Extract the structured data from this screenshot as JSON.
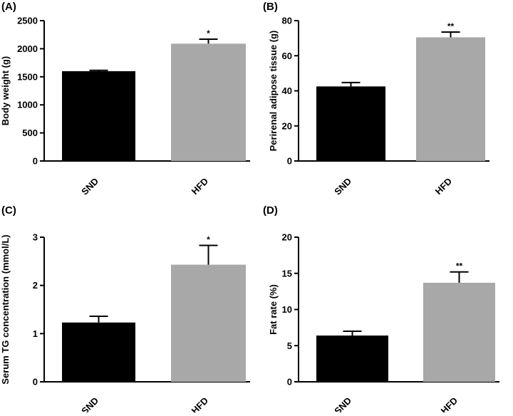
{
  "chart_data": [
    {
      "type": "bar",
      "panel_label": "(A)",
      "categories": [
        "SND",
        "HFD"
      ],
      "values": [
        1600,
        2090
      ],
      "errors": [
        15,
        80
      ],
      "significance": [
        "",
        "*"
      ],
      "ylabel": "Body weight (g)",
      "ylim": [
        0,
        2500
      ],
      "yticks": [
        0,
        500,
        1000,
        1500,
        2000,
        2500
      ],
      "colors": [
        "#000000",
        "#a8a8a8"
      ]
    },
    {
      "type": "bar",
      "panel_label": "(B)",
      "categories": [
        "SND",
        "HFD"
      ],
      "values": [
        42.5,
        70.5
      ],
      "errors": [
        2.2,
        3.0
      ],
      "significance": [
        "",
        "**"
      ],
      "ylabel": "Perirenal adipose tissue (g)",
      "ylim": [
        0,
        80
      ],
      "yticks": [
        0,
        20,
        40,
        60,
        80
      ],
      "colors": [
        "#000000",
        "#a8a8a8"
      ]
    },
    {
      "type": "bar",
      "panel_label": "(C)",
      "categories": [
        "SND",
        "HFD"
      ],
      "values": [
        1.23,
        2.43
      ],
      "errors": [
        0.13,
        0.4
      ],
      "significance": [
        "",
        "*"
      ],
      "ylabel": "Serum TG concentration (mmol/L)",
      "ylim": [
        0,
        3
      ],
      "yticks": [
        0,
        1,
        2,
        3
      ],
      "colors": [
        "#000000",
        "#a8a8a8"
      ]
    },
    {
      "type": "bar",
      "panel_label": "(D)",
      "categories": [
        "SND",
        "HFD"
      ],
      "values": [
        6.4,
        13.7
      ],
      "errors": [
        0.6,
        1.5
      ],
      "significance": [
        "",
        "**"
      ],
      "ylabel": "Fat rate (%)",
      "ylim": [
        0,
        20
      ],
      "yticks": [
        0,
        5,
        10,
        15,
        20
      ],
      "colors": [
        "#000000",
        "#a8a8a8"
      ]
    }
  ]
}
